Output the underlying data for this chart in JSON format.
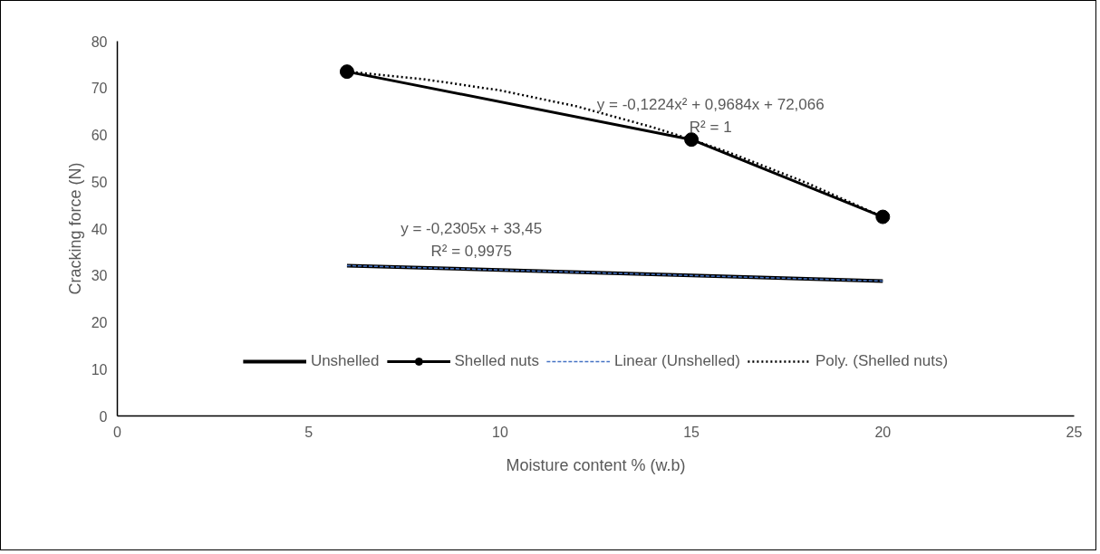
{
  "chart_data": {
    "type": "line",
    "xlabel": "Moisture content % (w.b)",
    "ylabel": "Cracking force (N)",
    "x": [
      6,
      15,
      20
    ],
    "series": [
      {
        "name": "Unshelled",
        "color": "#000000",
        "values": [
          32.1,
          30.0,
          28.8
        ],
        "marker": "none"
      },
      {
        "name": "Shelled nuts",
        "color": "#000000",
        "values": [
          73.5,
          59.0,
          42.5
        ],
        "marker": "circle"
      },
      {
        "name": "Linear (Unshelled)",
        "color": "#4472c4",
        "x": [
          6,
          20
        ],
        "values": [
          32.1,
          28.8
        ],
        "marker": "none",
        "line_style": "dashed"
      },
      {
        "name": "Poly. (Shelled nuts)",
        "color": "#000000",
        "x": [
          6,
          8,
          10,
          12,
          14,
          15,
          16,
          18,
          20
        ],
        "values": [
          73.5,
          71.9,
          69.5,
          66.1,
          61.6,
          59.0,
          56.2,
          49.8,
          42.5
        ],
        "marker": "none",
        "line_style": "dotted"
      }
    ],
    "xlim": [
      0,
      25
    ],
    "xticks": [
      0,
      5,
      10,
      15,
      20,
      25
    ],
    "ylim": [
      0,
      80
    ],
    "yticks": [
      0,
      10,
      20,
      30,
      40,
      50,
      60,
      70,
      80
    ],
    "grid": false,
    "legend": "bottom",
    "annotations": [
      "y = -0,1224x² + 0,9684x + 72,066\nR² = 1",
      "y = -0,2305x + 33,45\nR² = 0,9975"
    ]
  }
}
